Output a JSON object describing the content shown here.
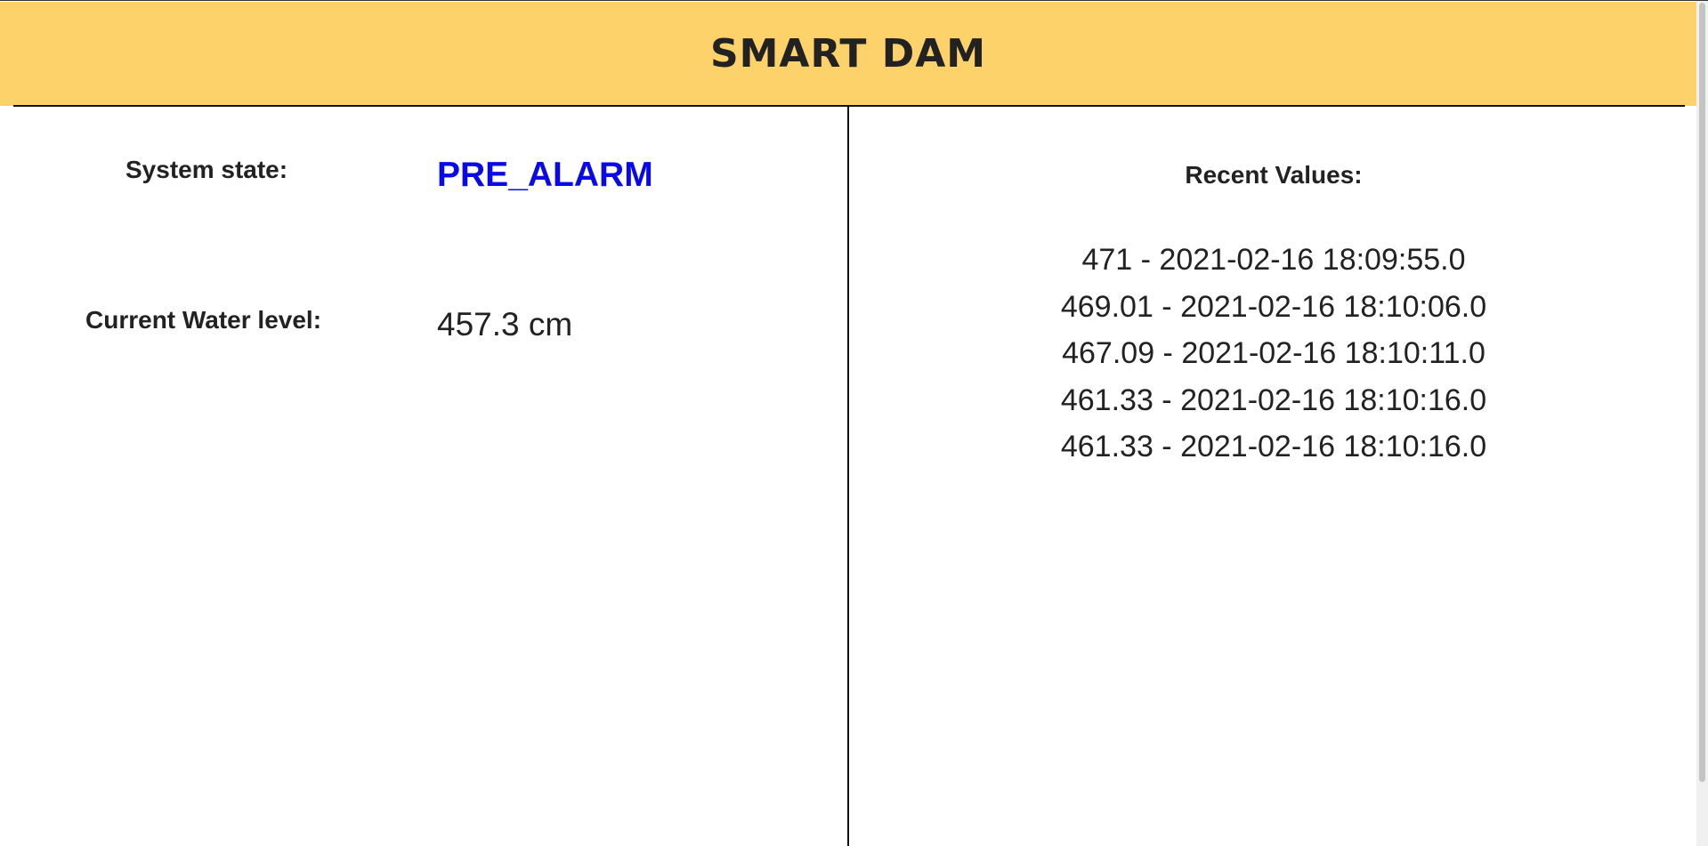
{
  "header": {
    "title": "SMART DAM",
    "background_color": "#fdd26b"
  },
  "status": {
    "system_state_label": "System state:",
    "system_state_value": "PRE_ALARM",
    "system_state_color": "#0a0ae8",
    "water_level_label": "Current Water level:",
    "water_level_value": "457.3 cm"
  },
  "recent": {
    "title": "Recent Values:",
    "items": [
      "471 - 2021-02-16 18:09:55.0",
      "469.01 - 2021-02-16 18:10:06.0",
      "467.09 - 2021-02-16 18:10:11.0",
      "461.33 - 2021-02-16 18:10:16.0",
      "461.33 - 2021-02-16 18:10:16.0"
    ]
  }
}
